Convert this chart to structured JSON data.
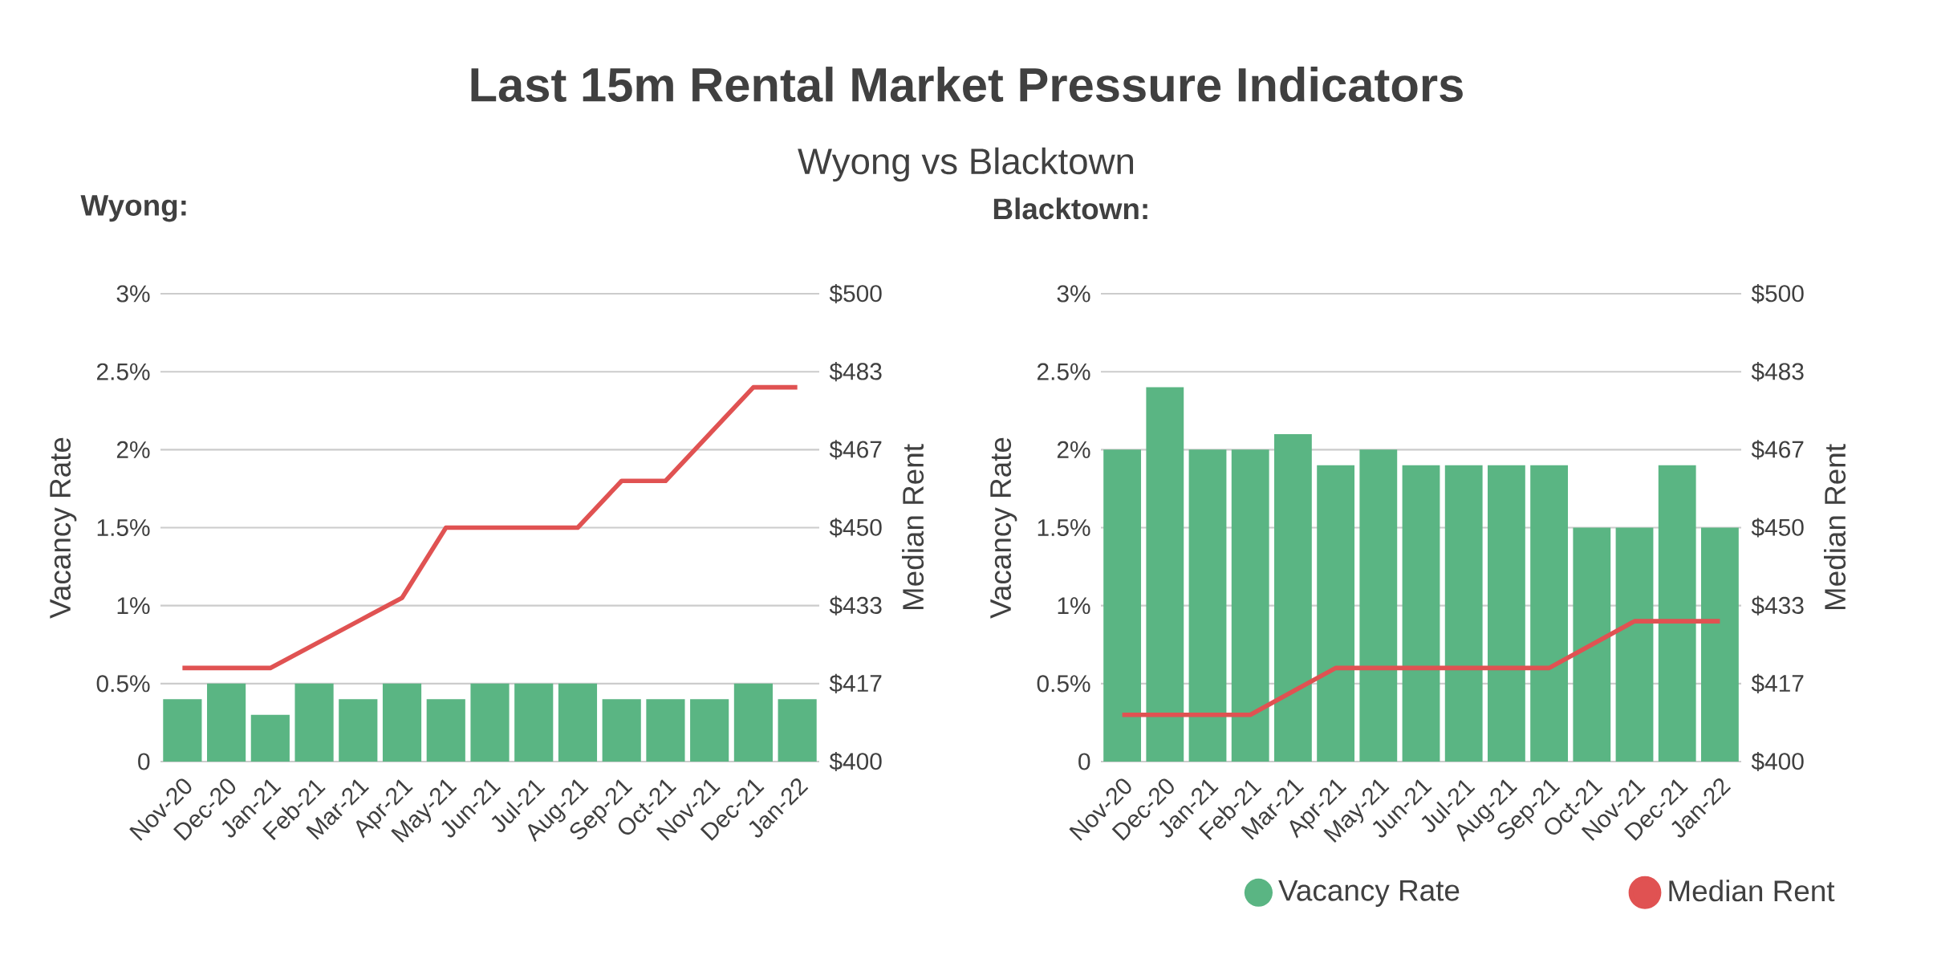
{
  "chart_data": [
    {
      "type": "bar",
      "title": "Wyong:",
      "annotations": [
        "Last 15m Rental Market Pressure Indicators",
        "Wyong vs Blacktown"
      ],
      "categories": [
        "Nov-20",
        "Dec-20",
        "Jan-21",
        "Feb-21",
        "Mar-21",
        "Apr-21",
        "May-21",
        "Jun-21",
        "Jul-21",
        "Aug-21",
        "Sep-21",
        "Oct-21",
        "Nov-21",
        "Dec-21",
        "Jan-22"
      ],
      "series": [
        {
          "color": "#5ab583",
          "values": [
            0.4,
            0.5,
            0.3,
            0.5,
            0.4,
            0.5,
            0.4,
            0.5,
            0.5,
            0.5,
            0.4,
            0.4,
            0.4,
            0.5,
            0.4
          ]
        },
        {
          "type": "line",
          "axis": "y2",
          "color": "#e05252",
          "values": [
            420,
            420,
            420,
            425,
            430,
            435,
            450,
            450,
            450,
            450,
            460,
            460,
            470,
            480,
            480
          ]
        }
      ],
      "ylabel": "Vacancy Rate",
      "y2label": "Median Rent",
      "ylim": [
        0,
        3
      ],
      "yticks": [
        0,
        {
          "value": 0.5,
          "label": "0.5%"
        },
        {
          "value": 1,
          "label": "1%"
        },
        {
          "value": 1.5,
          "label": "1.5%"
        },
        {
          "value": 2,
          "label": "2%"
        },
        {
          "value": 2.5,
          "label": "2.5%"
        },
        {
          "value": 3,
          "label": "3%"
        }
      ],
      "y2lim": [
        400,
        500
      ],
      "y2ticks": [
        {
          "value": 400,
          "label": "$400"
        },
        {
          "value": 416.67,
          "label": "$417"
        },
        {
          "value": 433.33,
          "label": "$433"
        },
        {
          "value": 450,
          "label": "$450"
        },
        {
          "value": 466.67,
          "label": "$467"
        },
        {
          "value": 483.33,
          "label": "$483"
        },
        {
          "value": 500,
          "label": "$500"
        }
      ],
      "grid": "y"
    },
    {
      "type": "bar",
      "title": "Blacktown:",
      "categories": [
        "Nov-20",
        "Dec-20",
        "Jan-21",
        "Feb-21",
        "Mar-21",
        "Apr-21",
        "May-21",
        "Jun-21",
        "Jul-21",
        "Aug-21",
        "Sep-21",
        "Oct-21",
        "Nov-21",
        "Dec-21",
        "Jan-22"
      ],
      "series": [
        {
          "name": "Vacancy Rate",
          "color": "#5ab583",
          "values": [
            2.0,
            2.4,
            2.0,
            2.0,
            2.1,
            1.9,
            2.0,
            1.9,
            1.9,
            1.9,
            1.9,
            1.5,
            1.5,
            1.9,
            1.5
          ]
        },
        {
          "type": "line",
          "axis": "y2",
          "name": "Median Rent",
          "color": "#e05252",
          "values": [
            410,
            410,
            410,
            410,
            415,
            420,
            420,
            420,
            420,
            420,
            420,
            425,
            430,
            430,
            430
          ]
        }
      ],
      "ylabel": "Vacancy Rate",
      "y2label": "Median Rent",
      "ylim": [
        0,
        3
      ],
      "yticks": [
        0,
        {
          "value": 0.5,
          "label": "0.5%"
        },
        {
          "value": 1,
          "label": "1%"
        },
        {
          "value": 1.5,
          "label": "1.5%"
        },
        {
          "value": 2,
          "label": "2%"
        },
        {
          "value": 2.5,
          "label": "2.5%"
        },
        {
          "value": 3,
          "label": "3%"
        }
      ],
      "y2lim": [
        400,
        500
      ],
      "y2ticks": [
        {
          "value": 400,
          "label": "$400"
        },
        {
          "value": 416.67,
          "label": "$417"
        },
        {
          "value": 433.33,
          "label": "$433"
        },
        {
          "value": 450,
          "label": "$450"
        },
        {
          "value": 466.67,
          "label": "$467"
        },
        {
          "value": 483.33,
          "label": "$483"
        },
        {
          "value": 500,
          "label": "$500"
        }
      ],
      "grid": "y",
      "legend": "bottom right"
    }
  ]
}
